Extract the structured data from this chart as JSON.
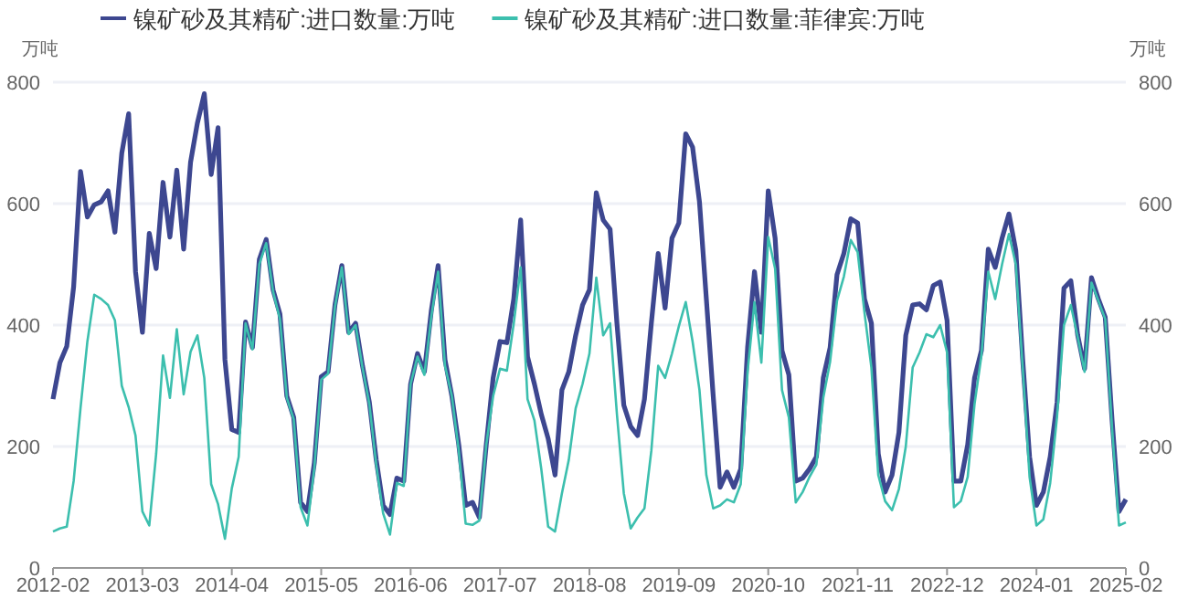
{
  "chart_data": {
    "type": "line",
    "ylabel": "万吨",
    "y2label": "万吨",
    "x": [
      "2012-02",
      "2012-03",
      "2012-04",
      "2012-05",
      "2012-06",
      "2012-07",
      "2012-08",
      "2012-09",
      "2012-10",
      "2012-11",
      "2012-12",
      "2013-01",
      "2013-02",
      "2013-03",
      "2013-04",
      "2013-05",
      "2013-06",
      "2013-07",
      "2013-08",
      "2013-09",
      "2013-10",
      "2013-11",
      "2013-12",
      "2014-01",
      "2014-02",
      "2014-03",
      "2014-04",
      "2014-05",
      "2014-06",
      "2014-07",
      "2014-08",
      "2014-09",
      "2014-10",
      "2014-11",
      "2014-12",
      "2015-01",
      "2015-02",
      "2015-03",
      "2015-04",
      "2015-05",
      "2015-06",
      "2015-07",
      "2015-08",
      "2015-09",
      "2015-10",
      "2015-11",
      "2015-12",
      "2016-01",
      "2016-02",
      "2016-03",
      "2016-04",
      "2016-05",
      "2016-06",
      "2016-07",
      "2016-08",
      "2016-09",
      "2016-10",
      "2016-11",
      "2016-12",
      "2017-01",
      "2017-02",
      "2017-03",
      "2017-04",
      "2017-05",
      "2017-06",
      "2017-07",
      "2017-08",
      "2017-09",
      "2017-10",
      "2017-11",
      "2017-12",
      "2018-01",
      "2018-02",
      "2018-03",
      "2018-04",
      "2018-05",
      "2018-06",
      "2018-07",
      "2018-08",
      "2018-09",
      "2018-10",
      "2018-11",
      "2018-12",
      "2019-01",
      "2019-02",
      "2019-03",
      "2019-04",
      "2019-05",
      "2019-06",
      "2019-07",
      "2019-08",
      "2019-09",
      "2019-10",
      "2019-11",
      "2019-12",
      "2020-01",
      "2020-02",
      "2020-03",
      "2020-04",
      "2020-05",
      "2020-06",
      "2020-07",
      "2020-08",
      "2020-09",
      "2020-10",
      "2020-11",
      "2020-12",
      "2021-01",
      "2021-02",
      "2021-03",
      "2021-04",
      "2021-05",
      "2021-06",
      "2021-07",
      "2021-08",
      "2021-09",
      "2021-10",
      "2021-11",
      "2021-12",
      "2022-01",
      "2022-02",
      "2022-03",
      "2022-04",
      "2022-05",
      "2022-06",
      "2022-07",
      "2022-08",
      "2022-09",
      "2022-10",
      "2022-11",
      "2022-12",
      "2023-01",
      "2023-02",
      "2023-03",
      "2023-04",
      "2023-05",
      "2023-06",
      "2023-07",
      "2023-08",
      "2023-09",
      "2023-10",
      "2023-11",
      "2023-12",
      "2024-01",
      "2024-02",
      "2024-03",
      "2024-04",
      "2024-05",
      "2024-06",
      "2024-07",
      "2024-08",
      "2024-09",
      "2024-10",
      "2024-11",
      "2024-12",
      "2025-01",
      "2025-02"
    ],
    "series": [
      {
        "name": "镍矿砂及其精矿:进口数量:万吨",
        "color": "#3d4790",
        "values": [
          278,
          338,
          365,
          463,
          653,
          578,
          598,
          603,
          621,
          553,
          683,
          748,
          488,
          388,
          551,
          493,
          635,
          545,
          655,
          525,
          668,
          733,
          781,
          648,
          725,
          343,
          228,
          223,
          405,
          363,
          508,
          541,
          458,
          418,
          283,
          248,
          108,
          93,
          173,
          315,
          323,
          433,
          498,
          388,
          403,
          333,
          273,
          178,
          103,
          88,
          148,
          143,
          303,
          353,
          323,
          423,
          498,
          343,
          283,
          203,
          103,
          108,
          83,
          203,
          313,
          373,
          371,
          443,
          573,
          348,
          303,
          253,
          213,
          153,
          293,
          323,
          383,
          433,
          458,
          618,
          573,
          558,
          403,
          268,
          233,
          218,
          278,
          403,
          518,
          428,
          543,
          568,
          715,
          693,
          603,
          443,
          283,
          133,
          158,
          133,
          163,
          363,
          488,
          388,
          621,
          543,
          358,
          318,
          143,
          148,
          163,
          183,
          313,
          363,
          483,
          518,
          575,
          568,
          443,
          403,
          188,
          125,
          153,
          223,
          383,
          433,
          435,
          425,
          465,
          471,
          408,
          143,
          143,
          203,
          313,
          358,
          525,
          495,
          543,
          583,
          523,
          343,
          183,
          103,
          125,
          183,
          273,
          461,
          473,
          383,
          328,
          478,
          443,
          413,
          243,
          93,
          113
        ]
      },
      {
        "name": "镍矿砂及其精矿:进口数量:菲律宾:万吨",
        "color": "#3cbfae",
        "values": [
          60,
          65,
          68,
          143,
          263,
          373,
          450,
          443,
          433,
          408,
          300,
          265,
          218,
          93,
          70,
          188,
          350,
          280,
          393,
          286,
          356,
          383,
          313,
          138,
          105,
          48,
          131,
          183,
          403,
          360,
          500,
          535,
          455,
          410,
          280,
          245,
          100,
          70,
          165,
          310,
          320,
          430,
          495,
          385,
          400,
          330,
          270,
          170,
          90,
          55,
          140,
          135,
          303,
          348,
          318,
          413,
          488,
          333,
          283,
          193,
          73,
          71,
          78,
          203,
          283,
          328,
          325,
          403,
          495,
          278,
          243,
          163,
          68,
          60,
          123,
          178,
          263,
          303,
          353,
          478,
          383,
          403,
          253,
          123,
          65,
          83,
          98,
          193,
          333,
          313,
          353,
          398,
          438,
          373,
          293,
          153,
          98,
          103,
          113,
          108,
          138,
          323,
          438,
          338,
          545,
          493,
          293,
          248,
          108,
          125,
          150,
          170,
          280,
          340,
          440,
          480,
          540,
          520,
          420,
          330,
          153,
          110,
          95,
          130,
          200,
          330,
          355,
          385,
          380,
          400,
          355,
          100,
          110,
          150,
          270,
          350,
          488,
          443,
          500,
          550,
          500,
          330,
          150,
          70,
          80,
          140,
          250,
          400,
          433,
          380,
          323,
          470,
          440,
          410,
          230,
          70,
          75
        ]
      }
    ],
    "xlim": [
      "2012-02",
      "2025-02"
    ],
    "xticks": [
      "2012-02",
      "2013-03",
      "2014-04",
      "2015-05",
      "2016-06",
      "2017-07",
      "2018-08",
      "2019-09",
      "2020-10",
      "2021-11",
      "2022-12",
      "2024-01",
      "2025-02"
    ],
    "ylim": [
      0,
      800
    ],
    "yticks": [
      0,
      200,
      400,
      600,
      800
    ],
    "y2lim": [
      0,
      800
    ],
    "y2ticks": [
      0,
      200,
      400,
      600,
      800
    ],
    "grid": "y",
    "legend": "top"
  }
}
